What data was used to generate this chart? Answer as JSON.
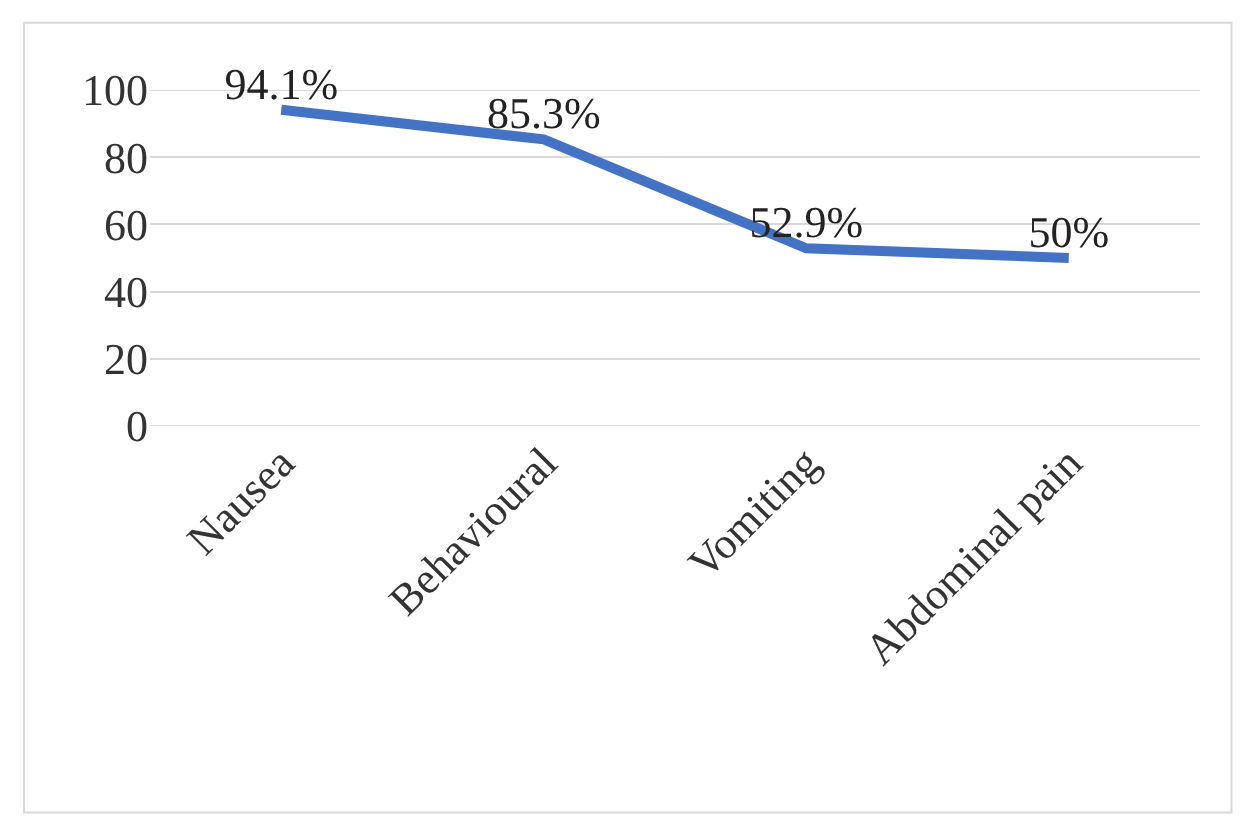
{
  "chart_data": {
    "type": "line",
    "categories": [
      "Nausea",
      "Behavioural",
      "Vomiting",
      "Abdominal pain"
    ],
    "series": [
      {
        "color": "#4472c4",
        "values": [
          94.1,
          85.3,
          52.9,
          50
        ],
        "value_labels": [
          "94.1%",
          "85.3%",
          "52.9%",
          "50%"
        ]
      }
    ],
    "ylim": [
      0,
      100
    ],
    "yticks": [
      0,
      20,
      40,
      60,
      80,
      100
    ],
    "grid": "y",
    "marker": "none",
    "line_style": "solid"
  }
}
